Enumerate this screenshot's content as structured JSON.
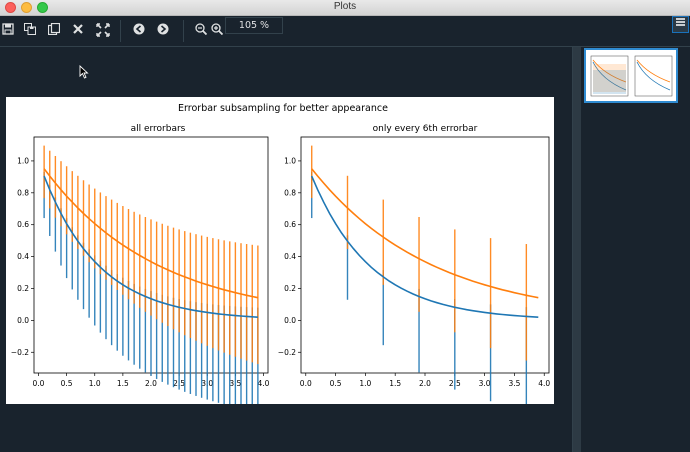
{
  "window": {
    "title": "Plots"
  },
  "toolbar": {
    "zoom_value": "105 %"
  },
  "figure": {
    "suptitle": "Errorbar subsampling for better appearance"
  },
  "colors": {
    "blue": "#1f77b4",
    "orange": "#ff7f0e",
    "background": "#19232d"
  },
  "chart_data": [
    {
      "type": "line",
      "title": "all errorbars",
      "xlabel": "",
      "ylabel": "",
      "xlim": [
        -0.08,
        4.08
      ],
      "ylim": [
        -0.33,
        1.15
      ],
      "xticks": [
        "0.0",
        "0.5",
        "1.0",
        "1.5",
        "2.0",
        "2.5",
        "3.0",
        "3.5",
        "4.0"
      ],
      "yticks": [
        "−0.2",
        "0.0",
        "0.2",
        "0.4",
        "0.6",
        "0.8",
        "1.0"
      ],
      "errorbar_every": 1,
      "x_start": 0.1,
      "x_step": 0.1,
      "x_end": 3.9,
      "series": [
        {
          "color": "#1f77b4",
          "model": "exp(-x)",
          "yerr_model": "0.1 + 0.1*sqrt(x)"
        },
        {
          "color": "#ff7f0e",
          "model": "exp(-0.5x)",
          "yerr_model": "0.1 + 0.1*sqrt(x)",
          "y_offset": 0.0
        }
      ]
    },
    {
      "type": "line",
      "title": "only every 6th errorbar",
      "xlabel": "",
      "ylabel": "",
      "xlim": [
        -0.08,
        4.08
      ],
      "ylim": [
        -0.33,
        1.15
      ],
      "xticks": [
        "0.0",
        "0.5",
        "1.0",
        "1.5",
        "2.0",
        "2.5",
        "3.0",
        "3.5",
        "4.0"
      ],
      "yticks": [
        "−0.2",
        "0.0",
        "0.2",
        "0.4",
        "0.6",
        "0.8",
        "1.0"
      ],
      "errorbar_every": 6,
      "x_start": 0.1,
      "x_step": 0.1,
      "x_end": 3.9,
      "series": [
        {
          "color": "#1f77b4",
          "model": "exp(-x)"
        },
        {
          "color": "#ff7f0e",
          "model": "exp(-0.5x)"
        }
      ]
    }
  ]
}
